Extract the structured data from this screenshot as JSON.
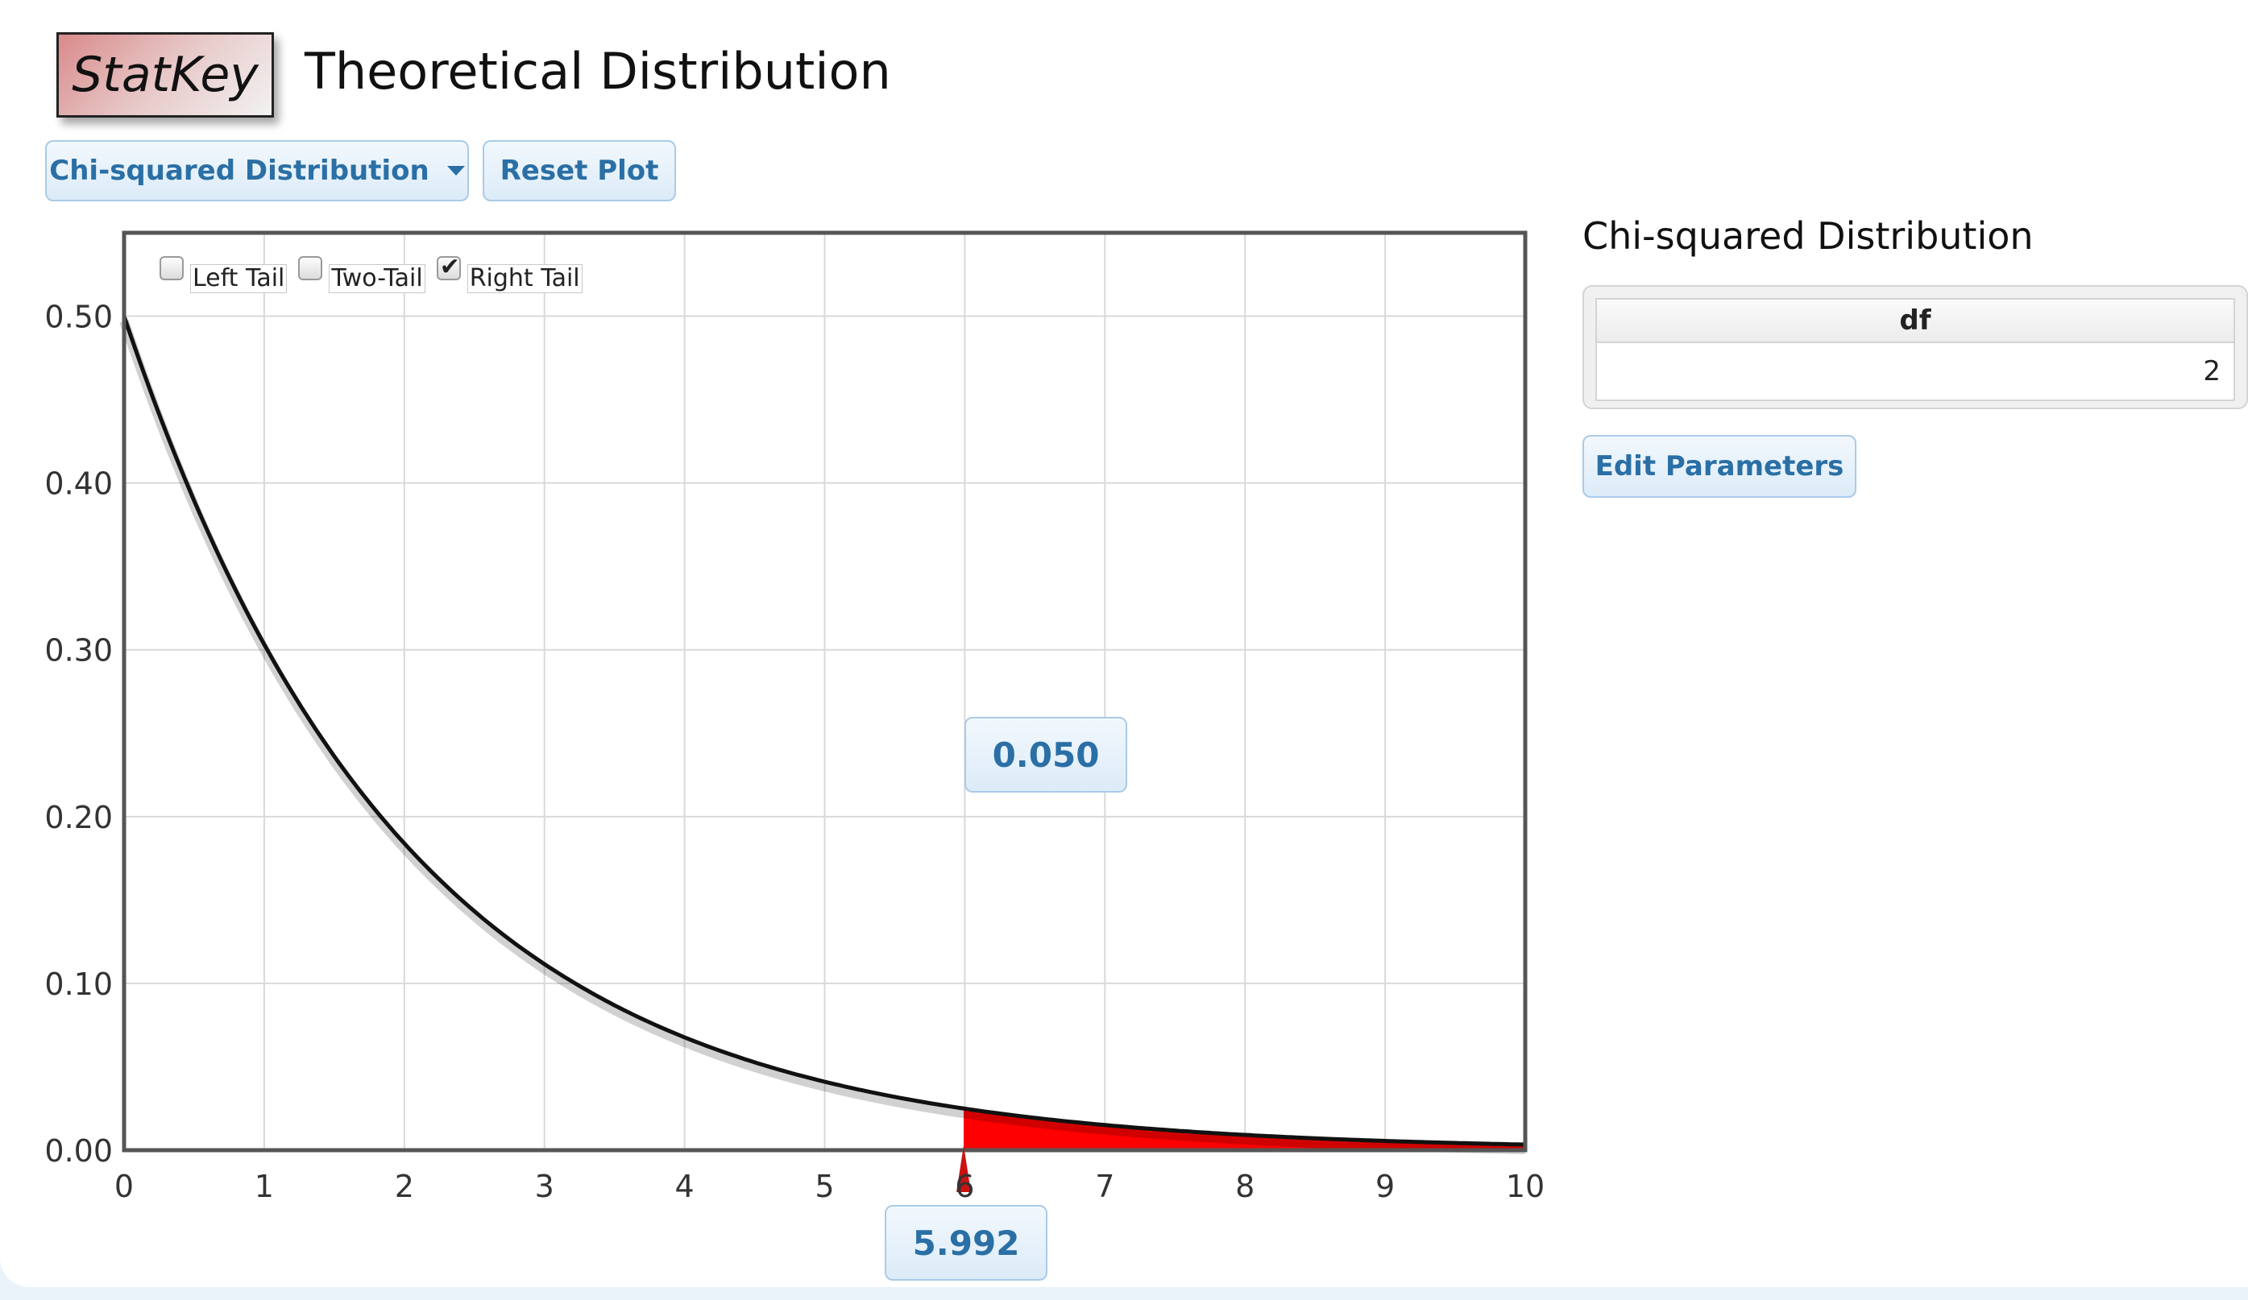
{
  "header": {
    "logo_text": "StatKey",
    "title": "Theoretical Distribution"
  },
  "toolbar": {
    "distribution_label": "Chi-squared Distribution",
    "reset_label": "Reset Plot"
  },
  "tail_options": [
    {
      "label": "Left Tail",
      "checked": false
    },
    {
      "label": "Two-Tail",
      "checked": false
    },
    {
      "label": "Right Tail",
      "checked": true
    }
  ],
  "panel": {
    "title": "Chi-squared Distribution",
    "param_header": "df",
    "param_value": "2",
    "edit_label": "Edit Parameters"
  },
  "results": {
    "tail_area": "0.050",
    "cutoff": "5.992"
  },
  "colors": {
    "accent": "#2a6fa5",
    "shade": "#ff0000",
    "curve": "#111111"
  },
  "chart_data": {
    "type": "area",
    "distribution": "chi-squared",
    "df": 2,
    "xlim": [
      0,
      10
    ],
    "ylim": [
      0,
      0.55
    ],
    "x_ticks": [
      "0",
      "1",
      "2",
      "3",
      "4",
      "5",
      "6",
      "7",
      "8",
      "9",
      "10"
    ],
    "y_ticks": [
      "0.00",
      "0.10",
      "0.20",
      "0.30",
      "0.40",
      "0.50"
    ],
    "x_tick_values": [
      0,
      1,
      2,
      3,
      4,
      5,
      6,
      7,
      8,
      9,
      10
    ],
    "y_tick_values": [
      0,
      0.1,
      0.2,
      0.3,
      0.4,
      0.5
    ],
    "shaded_region": {
      "from": 5.992,
      "to": 10,
      "tail": "right",
      "area": 0.05
    },
    "grid": true
  }
}
